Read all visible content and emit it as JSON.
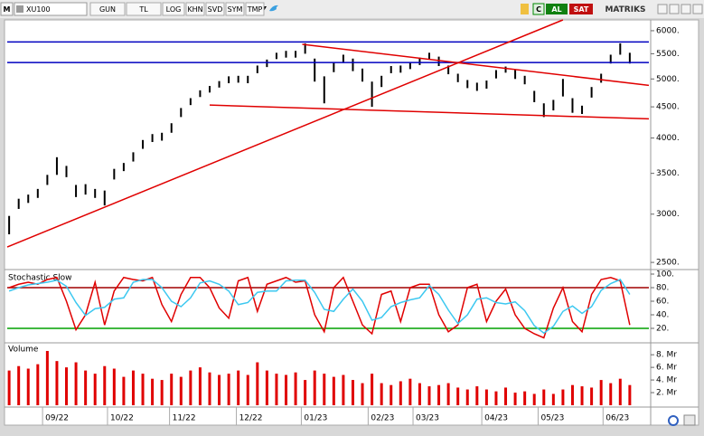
{
  "toolbar": {
    "menu": "M",
    "symbol": "XU100",
    "buttons": [
      "GUN",
      "TL",
      "LOG",
      "KHN",
      "SVD",
      "SYM",
      "TMP"
    ],
    "c_button": "C",
    "buy": "AL",
    "sell": "SAT",
    "brand": "MATRIKS"
  },
  "chart_data": [
    {
      "type": "ohlc",
      "color": "#000000",
      "log_scale": true,
      "xlim": [
        -0.2,
        67
      ],
      "ylim": [
        2450,
        6250
      ],
      "yticks": [
        {
          "value": 6000,
          "label": "6000."
        },
        {
          "value": 5500,
          "label": "5500."
        },
        {
          "value": 5000,
          "label": "5000."
        },
        {
          "value": 4500,
          "label": "4500."
        },
        {
          "value": 4000,
          "label": "4000."
        },
        {
          "value": 3500,
          "label": "3500."
        },
        {
          "value": 3000,
          "label": "3000."
        },
        {
          "value": 2500,
          "label": "2500."
        }
      ],
      "high": [
        2980,
        3180,
        3230,
        3300,
        3480,
        3720,
        3600,
        3350,
        3360,
        3300,
        3280,
        3560,
        3640,
        3790,
        3970,
        4060,
        4080,
        4230,
        4480,
        4650,
        4790,
        4870,
        4960,
        5050,
        5060,
        5060,
        5260,
        5380,
        5520,
        5560,
        5560,
        5720,
        5400,
        5050,
        5330,
        5480,
        5400,
        5200,
        4950,
        5060,
        5250,
        5260,
        5330,
        5420,
        5520,
        5440,
        5260,
        5100,
        4980,
        4930,
        4970,
        5170,
        5240,
        5180,
        5060,
        4780,
        4560,
        4620,
        5000,
        4650,
        4520,
        4850,
        5100,
        5480,
        5720,
        5520
      ],
      "low": [
        2780,
        3060,
        3130,
        3190,
        3350,
        3480,
        3450,
        3200,
        3230,
        3190,
        3100,
        3420,
        3530,
        3660,
        3840,
        3940,
        3960,
        4080,
        4330,
        4530,
        4670,
        4750,
        4840,
        4920,
        4930,
        4920,
        5110,
        5230,
        5390,
        5420,
        5420,
        5500,
        4950,
        4560,
        5130,
        5320,
        5150,
        4950,
        4500,
        4850,
        5110,
        5120,
        5190,
        5270,
        5390,
        5250,
        5090,
        4940,
        4830,
        4780,
        4820,
        5010,
        5120,
        5000,
        4900,
        4580,
        4330,
        4440,
        4680,
        4400,
        4380,
        4660,
        4930,
        5300,
        5480,
        5300
      ],
      "lines": [
        {
          "color": "#0000c0",
          "x": [
            -0.2,
            67
          ],
          "y": [
            5750,
            5750
          ]
        },
        {
          "color": "#0000c0",
          "x": [
            -0.2,
            67
          ],
          "y": [
            5320,
            5320
          ]
        },
        {
          "color": "#e00000",
          "x": [
            -0.2,
            58
          ],
          "y": [
            2650,
            6250
          ]
        },
        {
          "color": "#e00000",
          "x": [
            30.7,
            67
          ],
          "y": [
            5700,
            4880
          ]
        },
        {
          "color": "#e00000",
          "x": [
            21,
            67
          ],
          "y": [
            4530,
            4300
          ]
        }
      ]
    },
    {
      "type": "line",
      "title": "Stochastic Slow",
      "xlim": [
        -0.2,
        67
      ],
      "ylim": [
        0,
        104
      ],
      "yticks": [
        {
          "value": 100,
          "label": "100."
        },
        {
          "value": 80,
          "label": "80."
        },
        {
          "value": 60,
          "label": "60."
        },
        {
          "value": 40,
          "label": "40."
        },
        {
          "value": 20,
          "label": "20."
        }
      ],
      "levels": [
        {
          "value": 80,
          "color": "#a00000"
        },
        {
          "value": 20,
          "color": "#00a000"
        }
      ],
      "series": [
        {
          "color": "#e00000",
          "values": [
            80,
            85,
            88,
            85,
            92,
            95,
            60,
            18,
            40,
            88,
            25,
            75,
            95,
            92,
            90,
            95,
            55,
            30,
            70,
            95,
            95,
            80,
            50,
            35,
            90,
            95,
            45,
            85,
            90,
            95,
            88,
            90,
            40,
            15,
            80,
            95,
            60,
            25,
            12,
            70,
            75,
            30,
            80,
            85,
            85,
            40,
            15,
            25,
            80,
            85,
            30,
            60,
            78,
            40,
            20,
            12,
            6,
            50,
            80,
            30,
            15,
            70,
            92,
            95,
            90,
            25
          ]
        },
        {
          "color": "#3cc8f0",
          "values": [
            75,
            80,
            84,
            86,
            88,
            91,
            82,
            58,
            39,
            49,
            51,
            63,
            65,
            88,
            92,
            92,
            80,
            60,
            52,
            65,
            87,
            90,
            85,
            75,
            55,
            58,
            73,
            75,
            75,
            90,
            91,
            91,
            73,
            48,
            45,
            63,
            78,
            60,
            32,
            36,
            52,
            58,
            62,
            65,
            83,
            70,
            47,
            27,
            40,
            63,
            65,
            58,
            56,
            59,
            46,
            24,
            13,
            23,
            45,
            53,
            42,
            52,
            76,
            86,
            92,
            70
          ]
        }
      ]
    },
    {
      "type": "bar",
      "title": "Volume",
      "color": "#e00000",
      "xlim": [
        -0.2,
        67
      ],
      "ylim": [
        0,
        9.6
      ],
      "yticks": [
        {
          "value": 8,
          "label": "8. Mr"
        },
        {
          "value": 6,
          "label": "6. Mr"
        },
        {
          "value": 4,
          "label": "4. Mr"
        },
        {
          "value": 2,
          "label": "2. Mr"
        }
      ],
      "values": [
        5.5,
        6.2,
        5.8,
        6.5,
        8.6,
        7.0,
        6.0,
        6.8,
        5.5,
        5.0,
        6.2,
        5.8,
        4.5,
        5.5,
        5.0,
        4.2,
        4.0,
        5.0,
        4.5,
        5.5,
        6.0,
        5.2,
        4.8,
        5.0,
        5.5,
        4.8,
        6.8,
        5.5,
        5.0,
        4.8,
        5.2,
        4.0,
        5.5,
        5.0,
        4.5,
        4.8,
        4.0,
        3.5,
        5.0,
        3.5,
        3.2,
        3.8,
        4.2,
        3.5,
        3.0,
        3.2,
        3.5,
        2.8,
        2.5,
        3.0,
        2.5,
        2.2,
        2.8,
        2.0,
        2.2,
        1.8,
        2.5,
        1.8,
        2.5,
        3.2,
        3.0,
        2.8,
        4.0,
        3.5,
        4.2,
        3.2
      ],
      "xticks": [
        {
          "value": 3.5,
          "label": "09/22"
        },
        {
          "value": 10.3,
          "label": "10/22"
        },
        {
          "value": 16.8,
          "label": "11/22"
        },
        {
          "value": 23.8,
          "label": "12/22"
        },
        {
          "value": 30.6,
          "label": "01/23"
        },
        {
          "value": 37.6,
          "label": "02/23"
        },
        {
          "value": 42.3,
          "label": "03/23"
        },
        {
          "value": 49.5,
          "label": "04/23"
        },
        {
          "value": 55.4,
          "label": "05/23"
        },
        {
          "value": 62.2,
          "label": "06/23"
        }
      ]
    }
  ]
}
